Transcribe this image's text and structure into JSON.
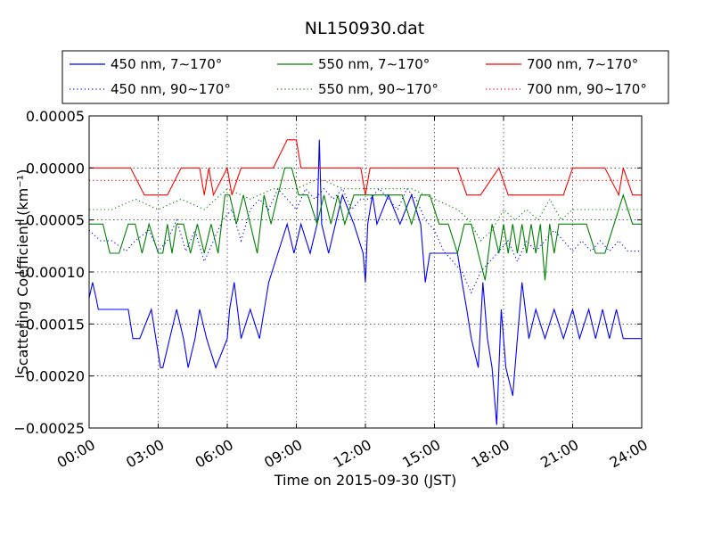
{
  "chart_data": {
    "type": "line",
    "title": "NL150930.dat",
    "xlabel": "Time on 2015-09-30 (JST)",
    "ylabel": "Scattering Coefficient (km⁻¹)",
    "x_unit": "hours (JST)",
    "xlim": [
      0,
      24
    ],
    "ylim": [
      -0.00025,
      5e-05
    ],
    "x_ticks": [
      "00:00",
      "03:00",
      "06:00",
      "09:00",
      "12:00",
      "15:00",
      "18:00",
      "21:00",
      "24:00"
    ],
    "y_ticks": [
      "0.00005",
      "0.00000",
      "−0.00005",
      "−0.00010",
      "−0.00015",
      "−0.00020",
      "−0.00025"
    ],
    "grid": true,
    "legend_position": "above plot",
    "series": [
      {
        "name": "450 nm, 7∼170°",
        "color": "#0000ff",
        "style": "solid",
        "x": [
          0,
          0.15,
          0.3,
          0.4,
          0.6,
          1.0,
          1.7,
          1.9,
          2.2,
          2.7,
          2.9,
          3.1,
          3.2,
          3.5,
          3.8,
          4.1,
          4.3,
          4.6,
          4.8,
          5.1,
          5.5,
          6.0,
          6.1,
          6.3,
          6.6,
          7.0,
          7.4,
          7.8,
          8.2,
          8.6,
          8.9,
          9.2,
          9.6,
          9.9,
          10.0,
          10.1,
          10.4,
          10.7,
          11.0,
          11.5,
          11.9,
          12.0,
          12.1,
          12.3,
          12.5,
          13.0,
          13.5,
          14.0,
          14.4,
          14.6,
          14.8,
          15.0,
          15.5,
          16.0,
          16.2,
          16.4,
          16.6,
          16.9,
          17.1,
          17.3,
          17.5,
          17.7,
          17.9,
          18.1,
          18.4,
          18.6,
          18.8,
          19.1,
          19.4,
          19.8,
          20.2,
          20.6,
          21.0,
          21.3,
          21.7,
          22.0,
          22.3,
          22.6,
          22.9,
          23.2,
          23.6,
          24.0
        ],
        "y": [
          -0.000125,
          -0.00011,
          -0.000125,
          -0.000136,
          -0.000136,
          -0.000136,
          -0.000136,
          -0.000164,
          -0.000164,
          -0.000136,
          -0.000164,
          -0.000192,
          -0.000192,
          -0.000164,
          -0.000136,
          -0.000164,
          -0.000192,
          -0.000164,
          -0.000136,
          -0.000164,
          -0.000192,
          -0.000164,
          -0.000136,
          -0.00011,
          -0.000164,
          -0.000136,
          -0.000164,
          -0.00011,
          -8.2e-05,
          -5.4e-05,
          -8.2e-05,
          -5.4e-05,
          -8.2e-05,
          -5.4e-05,
          2.7e-05,
          -5.4e-05,
          -8.2e-05,
          -5.4e-05,
          -2.6e-05,
          -5.4e-05,
          -8.2e-05,
          -0.00011,
          -5.4e-05,
          -2.6e-05,
          -5.4e-05,
          -2.6e-05,
          -5.4e-05,
          -2.6e-05,
          -5.4e-05,
          -0.00011,
          -8.2e-05,
          -8.2e-05,
          -8.2e-05,
          -8.2e-05,
          -0.00011,
          -0.000136,
          -0.000164,
          -0.000192,
          -0.00011,
          -0.000164,
          -0.000192,
          -0.000247,
          -0.000136,
          -0.000192,
          -0.000219,
          -0.000164,
          -0.00011,
          -0.000164,
          -0.000136,
          -0.000164,
          -0.000136,
          -0.000164,
          -0.000136,
          -0.000164,
          -0.000136,
          -0.000164,
          -0.000136,
          -0.000164,
          -0.000136,
          -0.000164,
          -0.000164,
          -0.000164
        ]
      },
      {
        "name": "450 nm, 90∼170°",
        "color": "#0000ff",
        "style": "dotted",
        "x": [
          0,
          0.5,
          1.0,
          1.6,
          2.0,
          2.6,
          3.0,
          3.4,
          3.8,
          4.2,
          4.6,
          5.0,
          5.4,
          5.8,
          6.2,
          6.6,
          7.0,
          7.4,
          7.8,
          8.2,
          8.6,
          9.0,
          9.4,
          9.8,
          10.2,
          10.6,
          11.0,
          11.4,
          11.8,
          12.2,
          12.6,
          13.0,
          13.4,
          13.8,
          14.2,
          14.6,
          15.0,
          15.4,
          15.8,
          16.2,
          16.6,
          17.0,
          17.4,
          17.8,
          18.2,
          18.6,
          19.0,
          19.4,
          19.8,
          20.2,
          20.6,
          21.0,
          21.4,
          21.8,
          22.2,
          22.6,
          23.0,
          23.4,
          24.0
        ],
        "y": [
          -6e-05,
          -7e-05,
          -7e-05,
          -8e-05,
          -7e-05,
          -6e-05,
          -8e-05,
          -7e-05,
          -5e-05,
          -8e-05,
          -6e-05,
          -9e-05,
          -7e-05,
          -5e-05,
          -4e-05,
          -7e-05,
          -4e-05,
          -3e-05,
          -4e-05,
          -2e-05,
          -3e-05,
          -4e-05,
          -2e-05,
          -3e-05,
          -2e-05,
          -3e-05,
          -2e-05,
          -4e-05,
          -3e-05,
          -3e-05,
          -2e-05,
          -3e-05,
          -4e-05,
          -2e-05,
          -3e-05,
          -5e-05,
          -6e-05,
          -8e-05,
          -9e-05,
          -0.0001,
          -0.00012,
          -0.0001,
          -9e-05,
          -8e-05,
          -7e-05,
          -9e-05,
          -7e-05,
          -8e-05,
          -7e-05,
          -6e-05,
          -7e-05,
          -8e-05,
          -7e-05,
          -8e-05,
          -7e-05,
          -8e-05,
          -7e-05,
          -8e-05,
          -8e-05
        ]
      },
      {
        "name": "550 nm, 7∼170°",
        "color": "#008000",
        "style": "solid",
        "x": [
          0,
          0.6,
          0.9,
          1.3,
          1.7,
          2.0,
          2.3,
          2.6,
          3.0,
          3.2,
          3.4,
          3.6,
          3.8,
          4.1,
          4.4,
          4.7,
          5.0,
          5.3,
          5.6,
          5.9,
          6.1,
          6.4,
          6.7,
          7.0,
          7.3,
          7.6,
          7.9,
          8.2,
          8.5,
          8.8,
          9.1,
          9.5,
          9.9,
          10.2,
          10.5,
          10.8,
          11.1,
          11.5,
          11.9,
          12.2,
          12.5,
          12.8,
          13.2,
          13.6,
          14.0,
          14.4,
          14.8,
          15.2,
          15.6,
          16.0,
          16.3,
          16.6,
          16.9,
          17.2,
          17.5,
          17.8,
          18.0,
          18.2,
          18.4,
          18.6,
          18.8,
          19.0,
          19.2,
          19.4,
          19.6,
          19.8,
          20.0,
          20.2,
          20.4,
          20.6,
          20.9,
          21.2,
          21.6,
          22.0,
          22.4,
          22.8,
          23.2,
          23.6,
          24.0
        ],
        "y": [
          -5.4e-05,
          -5.4e-05,
          -8.2e-05,
          -8.2e-05,
          -5.4e-05,
          -5.4e-05,
          -8.2e-05,
          -5.4e-05,
          -8.2e-05,
          -8.2e-05,
          -5.4e-05,
          -8.2e-05,
          -5.4e-05,
          -5.4e-05,
          -8.2e-05,
          -5.4e-05,
          -8.2e-05,
          -5.4e-05,
          -8.2e-05,
          -2.6e-05,
          -2.6e-05,
          -5.4e-05,
          -2.6e-05,
          -5.4e-05,
          -8.2e-05,
          -2.6e-05,
          -5.4e-05,
          -2.6e-05,
          0,
          0,
          -2.6e-05,
          -2.6e-05,
          -5.4e-05,
          -2.6e-05,
          -5.4e-05,
          -2.6e-05,
          -5.4e-05,
          -2.6e-05,
          -2.6e-05,
          -2.6e-05,
          -2.6e-05,
          -2.6e-05,
          -2.6e-05,
          -2.6e-05,
          -5.4e-05,
          -2.6e-05,
          -2.6e-05,
          -5.4e-05,
          -5.4e-05,
          -8.2e-05,
          -5.4e-05,
          -5.4e-05,
          -8.2e-05,
          -0.000108,
          -5.4e-05,
          -8.2e-05,
          -5.4e-05,
          -8.2e-05,
          -5.4e-05,
          -8.2e-05,
          -5.4e-05,
          -8.2e-05,
          -5.4e-05,
          -8.2e-05,
          -5.4e-05,
          -0.000108,
          -5.4e-05,
          -8.2e-05,
          -5.4e-05,
          -5.4e-05,
          -5.4e-05,
          -5.4e-05,
          -5.4e-05,
          -8.2e-05,
          -8.2e-05,
          -5.4e-05,
          -2.6e-05,
          -5.4e-05,
          -5.4e-05
        ]
      },
      {
        "name": "550 nm, 90∼170°",
        "color": "#008000",
        "style": "dotted",
        "x": [
          0,
          1.0,
          2.0,
          3.0,
          4.0,
          5.0,
          6.0,
          7.0,
          8.0,
          9.0,
          10.0,
          11.0,
          12.0,
          13.0,
          14.0,
          15.0,
          16.0,
          16.5,
          17.0,
          17.5,
          18.0,
          18.5,
          19.0,
          19.5,
          20.0,
          20.5,
          21.0,
          21.5,
          22.0,
          23.0,
          24.0
        ],
        "y": [
          -4e-05,
          -4e-05,
          -3e-05,
          -4e-05,
          -3e-05,
          -4e-05,
          -2e-05,
          -3e-05,
          -2e-05,
          -2e-05,
          -1e-05,
          -2e-05,
          -2e-05,
          -2e-05,
          -2e-05,
          -3e-05,
          -4e-05,
          -5e-05,
          -7e-05,
          -6e-05,
          -4e-05,
          -5e-05,
          -4e-05,
          -5e-05,
          -3e-05,
          -5e-05,
          -4e-05,
          -4e-05,
          -4e-05,
          -4e-05,
          -4e-05
        ]
      },
      {
        "name": "700 nm, 7∼170°",
        "color": "#ff0000",
        "style": "solid",
        "x": [
          0,
          1.8,
          2.4,
          3.4,
          4.0,
          4.8,
          5.0,
          5.2,
          5.4,
          6.0,
          6.2,
          6.6,
          7.0,
          8.0,
          8.6,
          9.0,
          9.2,
          10.0,
          11.0,
          11.8,
          12.0,
          12.2,
          13.0,
          14.0,
          15.0,
          16.0,
          16.4,
          17.0,
          17.8,
          18.2,
          18.8,
          19.2,
          20.0,
          20.6,
          21.0,
          22.0,
          22.4,
          23.0,
          23.2,
          23.6,
          24.0
        ],
        "y": [
          0,
          0,
          -2.6e-05,
          -2.6e-05,
          0,
          0,
          -2.6e-05,
          0,
          -2.6e-05,
          0,
          -2.6e-05,
          0,
          0,
          0,
          2.7e-05,
          2.7e-05,
          0,
          0,
          0,
          0,
          -2.6e-05,
          0,
          0,
          0,
          0,
          0,
          -2.6e-05,
          -2.6e-05,
          0,
          -2.6e-05,
          -2.6e-05,
          -2.6e-05,
          -2.6e-05,
          -2.6e-05,
          0,
          0,
          0,
          -2.6e-05,
          0,
          -2.6e-05,
          -2.6e-05
        ]
      },
      {
        "name": "700 nm, 90∼170°",
        "color": "#ff0000",
        "style": "dotted",
        "x": [
          0,
          2.0,
          3.0,
          4.0,
          5.0,
          6.0,
          7.0,
          8.0,
          9.0,
          10.0,
          11.0,
          12.0,
          13.0,
          14.0,
          15.0,
          16.0,
          17.0,
          18.0,
          19.0,
          20.0,
          21.0,
          22.0,
          23.0,
          24.0
        ],
        "y": [
          -1.2e-05,
          -1.2e-05,
          -1.2e-05,
          -1.2e-05,
          -1.2e-05,
          -1.2e-05,
          -1.2e-05,
          -1.2e-05,
          -1.2e-05,
          -1.2e-05,
          -1.2e-05,
          -1.2e-05,
          -1.2e-05,
          -1.2e-05,
          -1.2e-05,
          -1.2e-05,
          -1.2e-05,
          -1.2e-05,
          -1.2e-05,
          -1.2e-05,
          -1.2e-05,
          -1.2e-05,
          -1.2e-05,
          -1.2e-05
        ]
      }
    ]
  }
}
